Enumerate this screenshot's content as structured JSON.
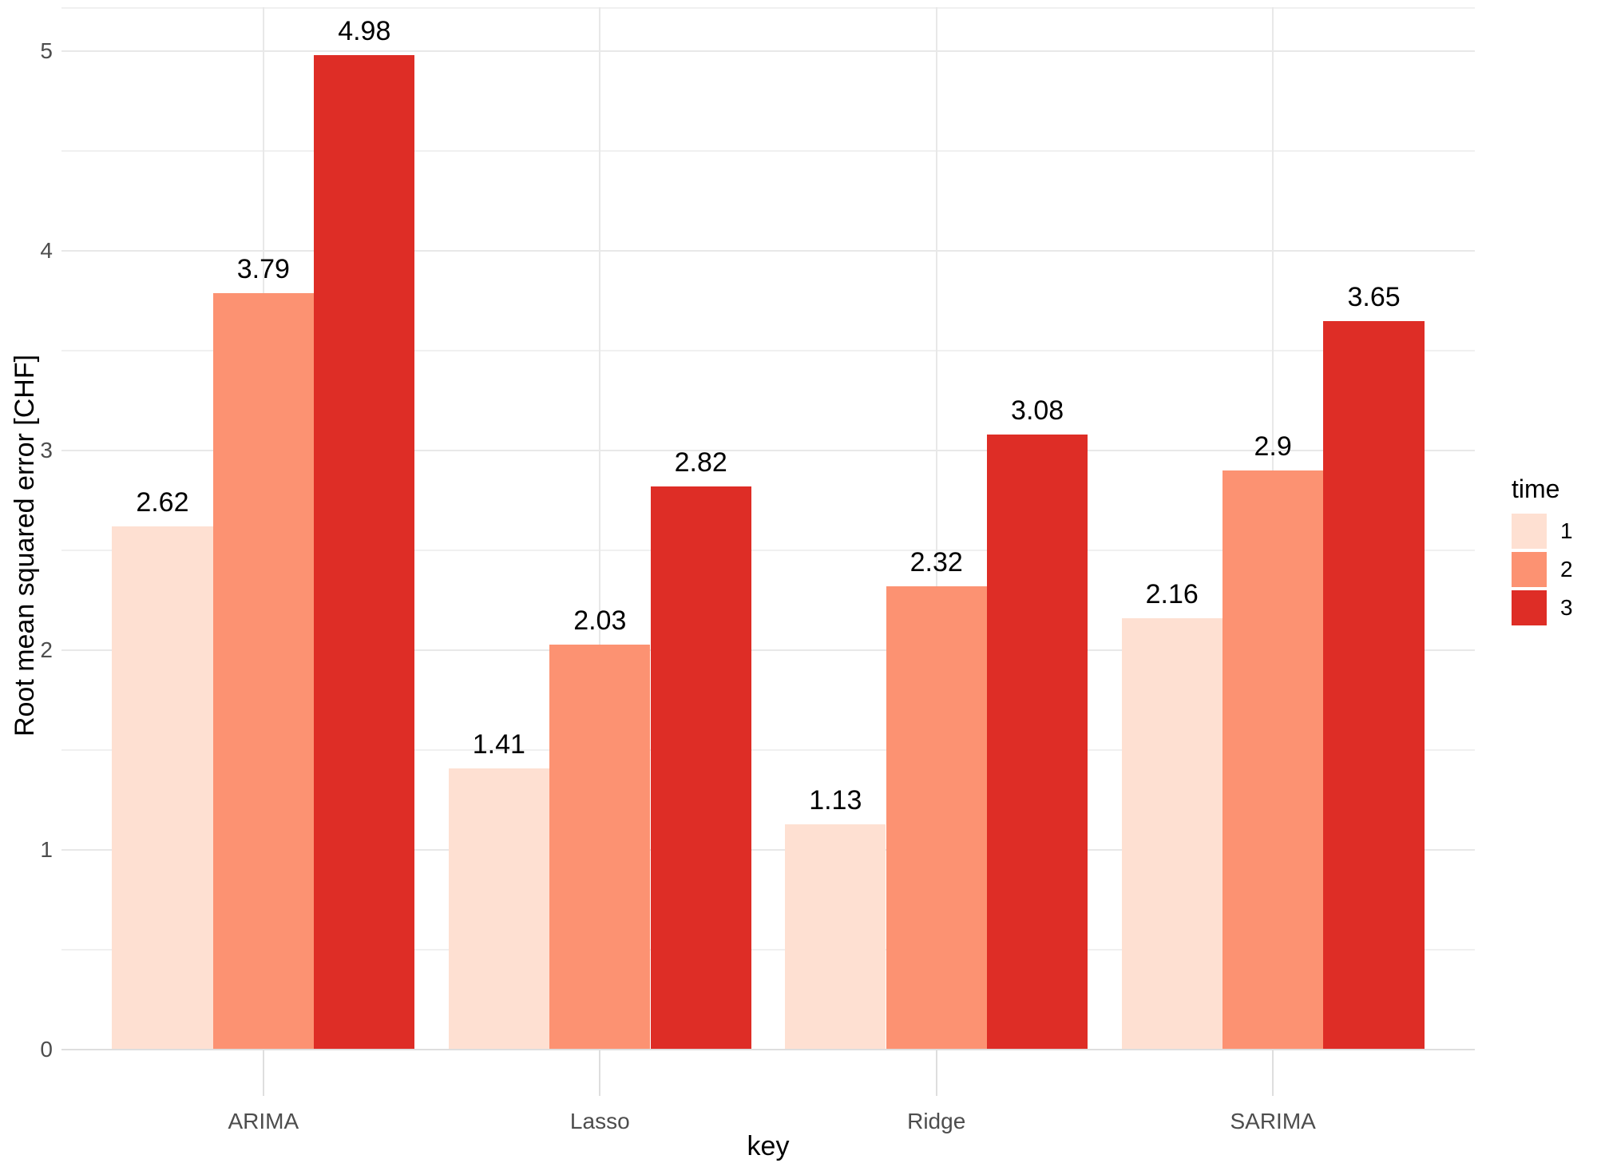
{
  "chart_data": {
    "type": "bar",
    "title": "",
    "xlabel": "key",
    "ylabel": "Root mean squared error [CHF]",
    "categories": [
      "ARIMA",
      "Lasso",
      "Ridge",
      "SARIMA"
    ],
    "series": [
      {
        "name": "1",
        "color": "#FEE0D2",
        "values": [
          2.62,
          1.41,
          1.13,
          2.16
        ]
      },
      {
        "name": "2",
        "color": "#FC9272",
        "values": [
          3.79,
          2.03,
          2.32,
          2.9
        ]
      },
      {
        "name": "3",
        "color": "#DE2D26",
        "values": [
          4.98,
          2.82,
          3.08,
          3.65
        ]
      }
    ],
    "bar_value_labels": [
      [
        "2.62",
        "3.79",
        "4.98"
      ],
      [
        "1.41",
        "2.03",
        "2.82"
      ],
      [
        "1.13",
        "2.32",
        "3.08"
      ],
      [
        "2.16",
        "2.9",
        "3.65"
      ]
    ],
    "y_ticks": [
      "0",
      "1",
      "2",
      "3",
      "4",
      "5"
    ],
    "ylim": [
      0,
      5.22
    ],
    "y_minor_step": 0.5,
    "grid": true,
    "legend_position": "right",
    "legend_title": "time",
    "legend_labels": [
      "1",
      "2",
      "3"
    ]
  },
  "style": {
    "background": "#FFFFFF",
    "grid_major_color": "#E8E8E8",
    "grid_minor_color": "#F0F0F0",
    "axis_line_color": "#DEDEDE",
    "tick_mark_color": "#DEDEDE",
    "tick_label_color": "#4D4D4D",
    "title_color": "#000000",
    "value_label_color": "#000000",
    "bar_colors": [
      "#FEE0D2",
      "#FC9272",
      "#DE2D26"
    ]
  }
}
